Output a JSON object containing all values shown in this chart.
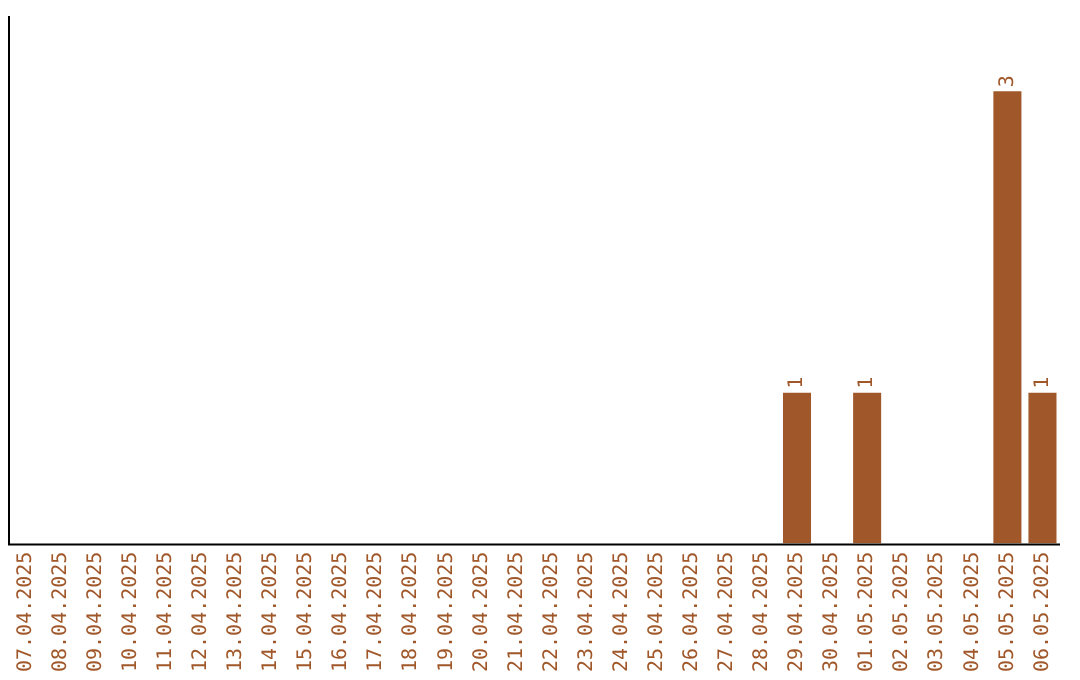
{
  "chart_data": {
    "type": "bar",
    "categories": [
      "07.04.2025",
      "08.04.2025",
      "09.04.2025",
      "10.04.2025",
      "11.04.2025",
      "12.04.2025",
      "13.04.2025",
      "14.04.2025",
      "15.04.2025",
      "16.04.2025",
      "17.04.2025",
      "18.04.2025",
      "19.04.2025",
      "20.04.2025",
      "21.04.2025",
      "22.04.2025",
      "23.04.2025",
      "24.04.2025",
      "25.04.2025",
      "26.04.2025",
      "27.04.2025",
      "28.04.2025",
      "29.04.2025",
      "30.04.2025",
      "01.05.2025",
      "02.05.2025",
      "03.05.2025",
      "04.05.2025",
      "05.05.2025",
      "06.05.2025"
    ],
    "values": [
      null,
      null,
      null,
      null,
      null,
      null,
      null,
      null,
      null,
      null,
      null,
      null,
      null,
      null,
      null,
      null,
      null,
      null,
      null,
      null,
      null,
      null,
      1,
      null,
      1,
      null,
      null,
      null,
      3,
      1
    ],
    "color": "#a0582a",
    "data_labels": true,
    "grid": false,
    "legend": false,
    "tick_labels": "x"
  }
}
